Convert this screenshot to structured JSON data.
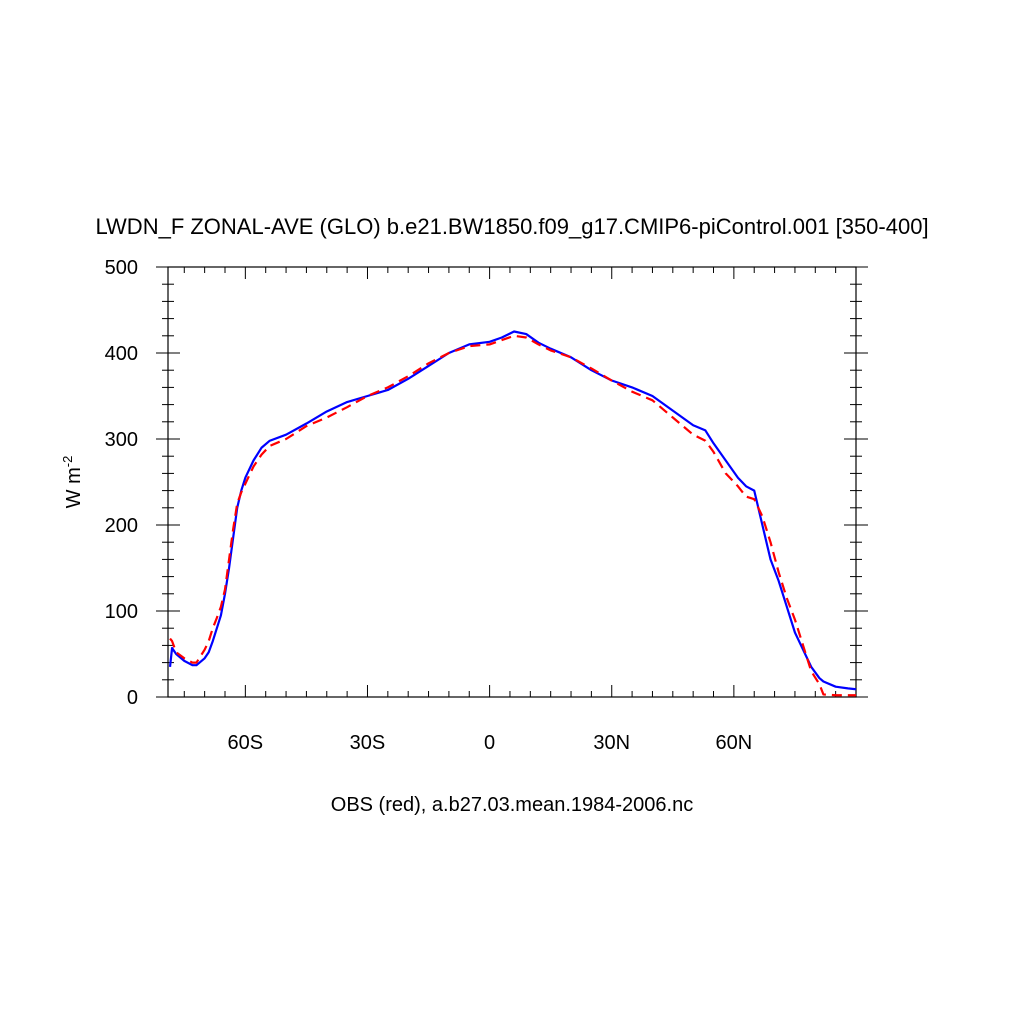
{
  "chart_data": {
    "type": "line",
    "title": "LWDN_F ZONAL-AVE (GLO) b.e21.BW1850.f09_g17.CMIP6-piControl.001 [350-400]",
    "y_label": {
      "text": "W m",
      "superscript": "-2"
    },
    "annotation": "OBS (red), a.b27.03.mean.1984-2006.nc",
    "x": [
      -78.5,
      -78,
      -77,
      -75,
      -73,
      -72,
      -70,
      -69,
      -68,
      -67,
      -66,
      -65,
      -64,
      -63,
      -62,
      -61,
      -60,
      -58,
      -56,
      -54,
      -50,
      -45,
      -40,
      -35,
      -30,
      -25,
      -20,
      -15,
      -10,
      -5,
      0,
      3,
      6,
      9,
      12,
      15,
      20,
      25,
      30,
      35,
      40,
      45,
      50,
      53,
      55,
      58,
      61,
      63,
      65,
      66,
      67,
      69,
      71,
      73,
      75,
      77,
      79,
      81,
      82,
      85,
      88,
      90
    ],
    "series": [
      {
        "color": "#0000ff",
        "linestyle": "solid",
        "values": [
          35,
          57,
          50,
          42,
          37,
          37,
          45,
          52,
          65,
          80,
          95,
          120,
          150,
          185,
          220,
          240,
          255,
          275,
          290,
          298,
          305,
          318,
          332,
          343,
          350,
          357,
          370,
          385,
          400,
          410,
          413,
          418,
          425,
          422,
          412,
          405,
          395,
          380,
          368,
          360,
          350,
          333,
          316,
          310,
          295,
          275,
          255,
          245,
          240,
          220,
          200,
          160,
          135,
          105,
          75,
          55,
          35,
          22,
          18,
          12,
          10,
          9
        ]
      },
      {
        "color": "#ff0000",
        "linestyle": "dashed",
        "values": [
          68,
          65,
          52,
          45,
          40,
          40,
          55,
          65,
          80,
          92,
          105,
          125,
          160,
          195,
          225,
          238,
          248,
          268,
          282,
          292,
          300,
          315,
          325,
          337,
          350,
          360,
          373,
          388,
          400,
          408,
          410,
          415,
          420,
          418,
          410,
          403,
          395,
          382,
          368,
          355,
          345,
          325,
          305,
          298,
          285,
          260,
          245,
          233,
          230,
          220,
          210,
          180,
          145,
          115,
          90,
          60,
          30,
          15,
          3,
          2,
          2,
          2
        ]
      }
    ],
    "xlim": [
      -79,
      90
    ],
    "xticks": [
      {
        "value": -60,
        "label": "60S"
      },
      {
        "value": -30,
        "label": "30S"
      },
      0,
      {
        "value": 30,
        "label": "30N"
      },
      {
        "value": 60,
        "label": "60N"
      }
    ],
    "xminorticks": [
      -75,
      -70,
      -65,
      -55,
      -50,
      -45,
      -40,
      -35,
      -25,
      -20,
      -15,
      -10,
      -5,
      5,
      10,
      15,
      20,
      25,
      35,
      40,
      45,
      50,
      55,
      65,
      70,
      75,
      80,
      85
    ],
    "ylim": [
      0,
      500
    ],
    "yticks": [
      0,
      100,
      200,
      300,
      400,
      500
    ],
    "yminorticks": [
      20,
      40,
      60,
      80,
      120,
      140,
      160,
      180,
      220,
      240,
      260,
      280,
      320,
      340,
      360,
      380,
      420,
      440,
      460,
      480
    ]
  }
}
